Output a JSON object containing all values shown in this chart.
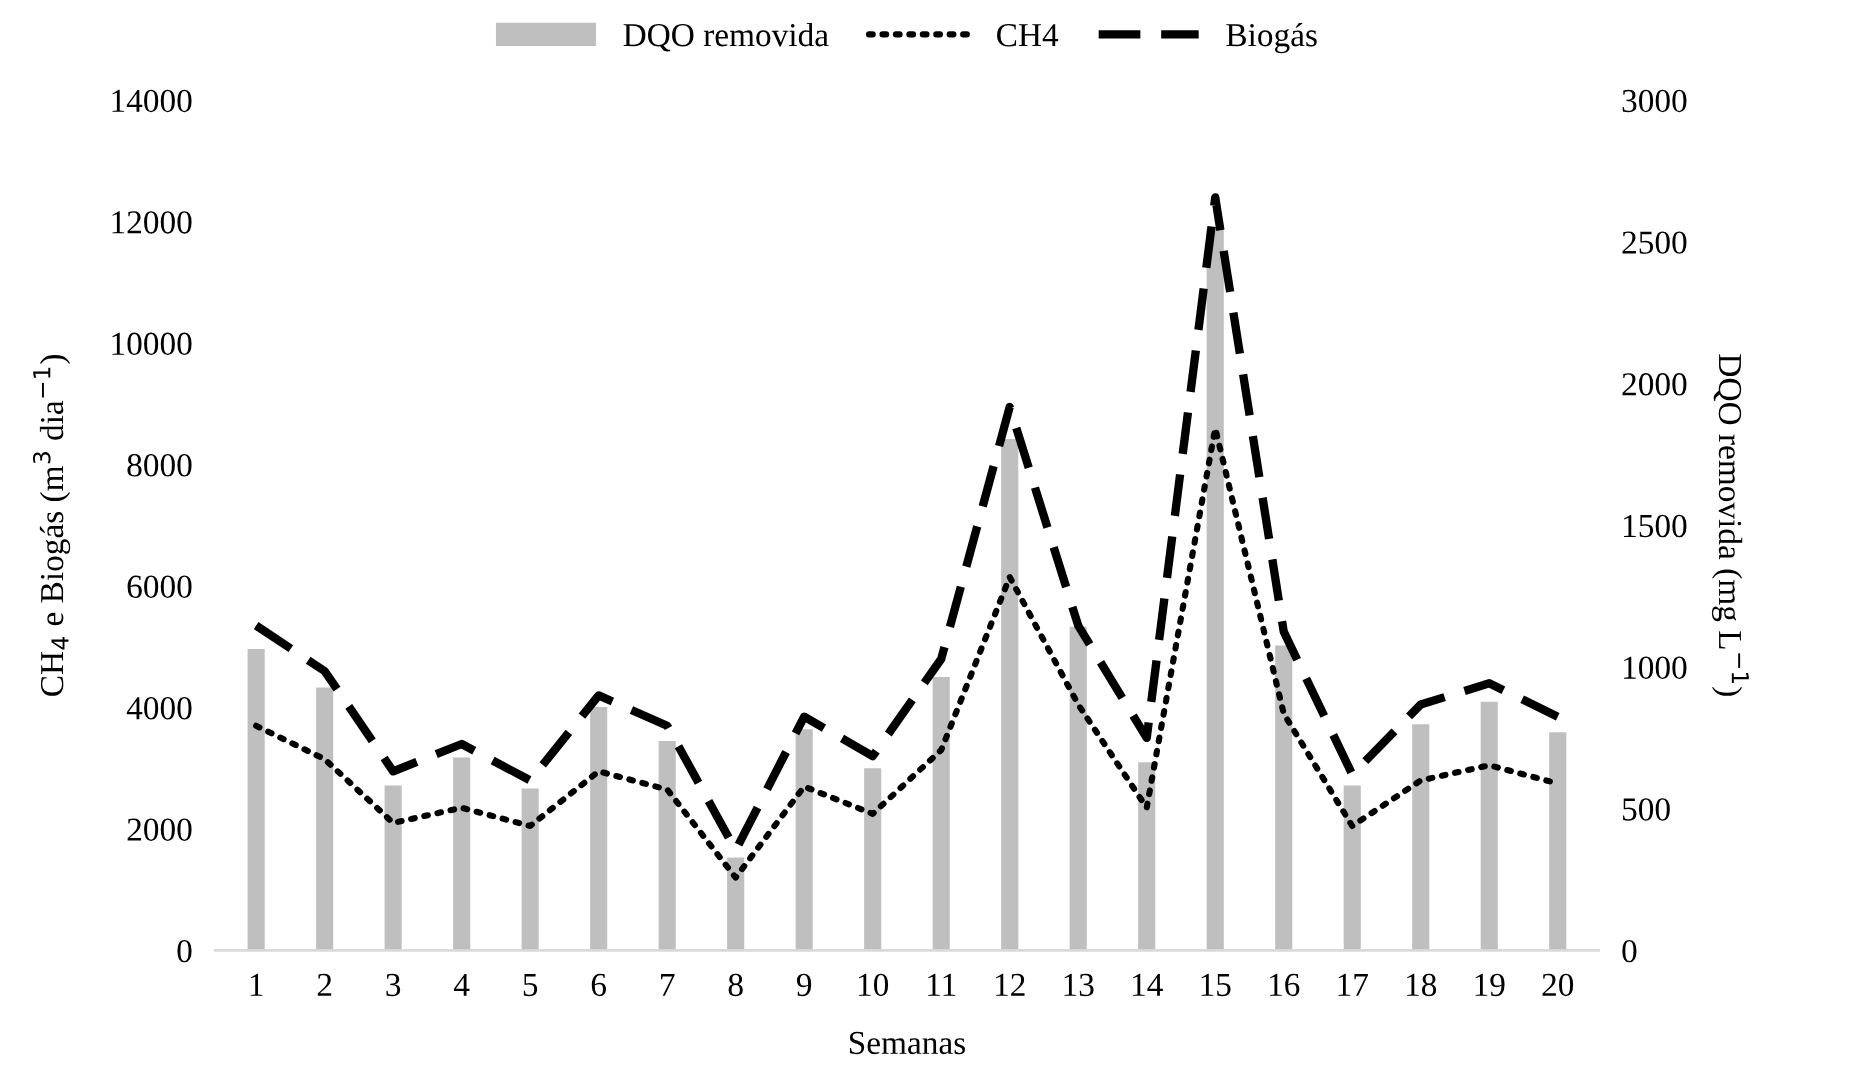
{
  "chart_data": {
    "type": "line",
    "xlabel": "Semanas",
    "ylabel": "CH$_{4}$ e Biogás (m$^{3}$ dia$^{−1}$)",
    "y2label": "DQO removida (mg L$^{−1}$)",
    "categories": [
      "1",
      "2",
      "3",
      "4",
      "5",
      "6",
      "7",
      "8",
      "9",
      "10",
      "11",
      "12",
      "13",
      "14",
      "15",
      "16",
      "17",
      "18",
      "19",
      "20"
    ],
    "series": [
      {
        "name": "DQO removida",
        "type": "bar",
        "axis": "y2",
        "color": "#bfbfbf",
        "values": [
          1064,
          928,
          582,
          681,
          572,
          859,
          739,
          328,
          781,
          643,
          965,
          1805,
          1142,
          664,
          2550,
          1076,
          582,
          798,
          878,
          770
        ]
      },
      {
        "name": "CH4",
        "line_style": "dotted",
        "color": "#000000",
        "values": [
          3700,
          3150,
          2100,
          2350,
          2050,
          2950,
          2650,
          1200,
          2700,
          2250,
          3300,
          6150,
          4050,
          2350,
          8600,
          3900,
          2050,
          2800,
          3050,
          2750
        ]
      },
      {
        "name": "Biogás",
        "line_style": "dashed",
        "color": "#000000",
        "values": [
          5350,
          4600,
          2950,
          3400,
          2800,
          4200,
          3700,
          1650,
          3850,
          3200,
          4800,
          8950,
          5350,
          3500,
          12400,
          5250,
          2900,
          4050,
          4400,
          3850
        ]
      }
    ],
    "ylim": [
      0,
      14000
    ],
    "yticks": [
      0,
      2000,
      4000,
      6000,
      8000,
      10000,
      12000,
      14000
    ],
    "y2lim": [
      0,
      3000
    ],
    "y2ticks": [
      0,
      500,
      1000,
      1500,
      2000,
      2500,
      3000
    ],
    "legend": "top",
    "grid": false,
    "marker": "none"
  }
}
